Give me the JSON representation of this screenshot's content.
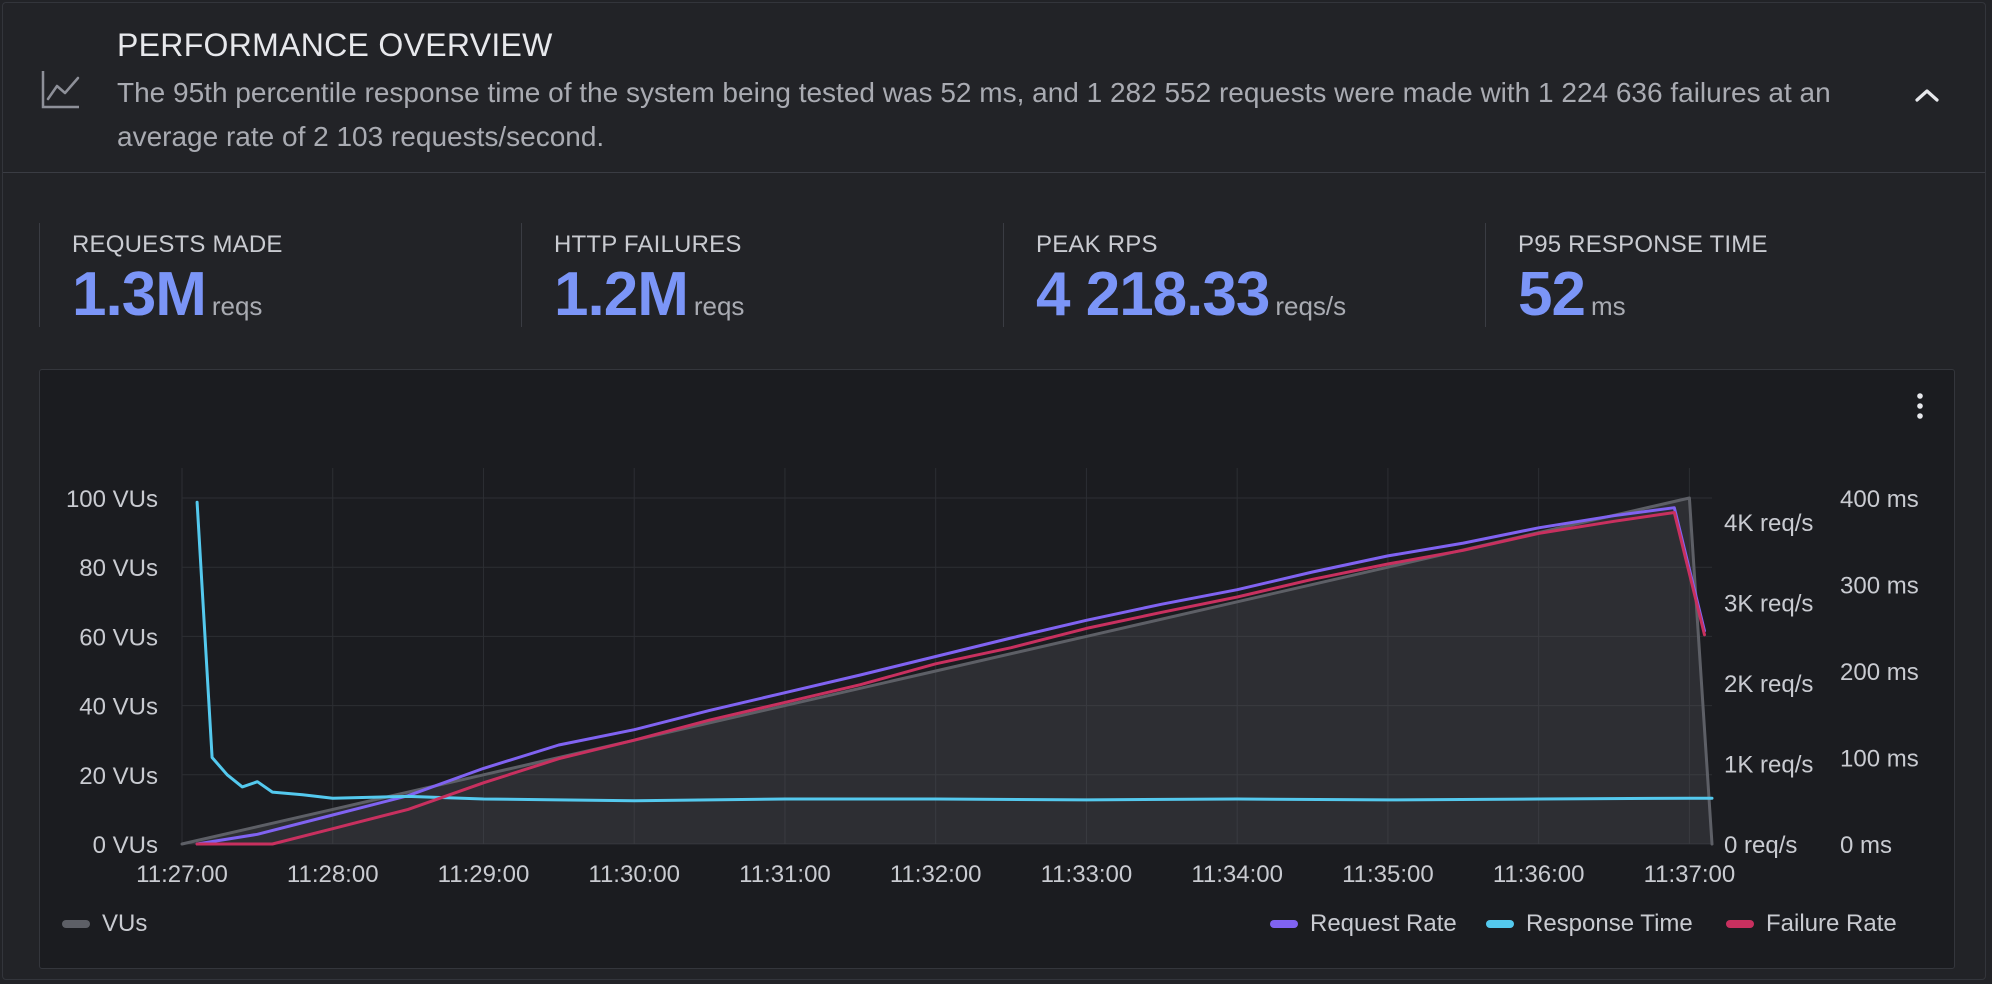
{
  "header": {
    "title": "PERFORMANCE OVERVIEW",
    "summary": "The 95th percentile response time of the system being tested was 52 ms, and 1 282 552 requests were made with 1 224 636 failures at an average rate of 2 103 requests/second.",
    "icon": "line-chart-icon",
    "collapse_icon": "chevron-up-icon"
  },
  "stats": [
    {
      "label": "REQUESTS MADE",
      "value": "1.3M",
      "unit": "reqs"
    },
    {
      "label": "HTTP FAILURES",
      "value": "1.2M",
      "unit": "reqs"
    },
    {
      "label": "PEAK RPS",
      "value": "4 218.33",
      "unit": "reqs/s"
    },
    {
      "label": "P95 RESPONSE TIME",
      "value": "52",
      "unit": "ms"
    }
  ],
  "chart": {
    "menu_icon": "more-vertical-icon"
  },
  "colors": {
    "accent": "#7b95f7",
    "vus": "#5d5f66",
    "request_rate": "#8063f2",
    "response_time": "#54c9ee",
    "failure_rate": "#c8305f"
  },
  "chart_data": {
    "type": "line",
    "x_ticks": [
      "11:27:00",
      "11:28:00",
      "11:29:00",
      "11:30:00",
      "11:31:00",
      "11:32:00",
      "11:33:00",
      "11:34:00",
      "11:35:00",
      "11:36:00",
      "11:37:00"
    ],
    "axes": {
      "vus": {
        "ticks": [
          "0 VUs",
          "20 VUs",
          "40 VUs",
          "60 VUs",
          "80 VUs",
          "100 VUs"
        ],
        "range": [
          0,
          100
        ]
      },
      "rps": {
        "ticks": [
          "0 req/s",
          "1K req/s",
          "2K req/s",
          "3K req/s",
          "4K req/s"
        ],
        "range": [
          0,
          4300
        ]
      },
      "ms": {
        "ticks": [
          "0 ms",
          "100 ms",
          "200 ms",
          "300 ms",
          "400 ms"
        ],
        "range": [
          0,
          400
        ]
      }
    },
    "grid": true,
    "legend_placement": "bottom",
    "series": [
      {
        "name": "VUs",
        "axis": "vus",
        "color": "#5d5f66",
        "fill": true,
        "points": [
          [
            0,
            0
          ],
          [
            0.1,
            1
          ],
          [
            0.5,
            5
          ],
          [
            1,
            10
          ],
          [
            2,
            20
          ],
          [
            3,
            30
          ],
          [
            4,
            40
          ],
          [
            5,
            50
          ],
          [
            6,
            60
          ],
          [
            7,
            70
          ],
          [
            8,
            80
          ],
          [
            9,
            90
          ],
          [
            10,
            100
          ],
          [
            10.15,
            0
          ]
        ]
      },
      {
        "name": "Request Rate",
        "axis": "rps",
        "color": "#8063f2",
        "points": [
          [
            0.1,
            0
          ],
          [
            0.5,
            120
          ],
          [
            1,
            360
          ],
          [
            1.5,
            600
          ],
          [
            2,
            940
          ],
          [
            2.5,
            1230
          ],
          [
            3,
            1420
          ],
          [
            3.5,
            1660
          ],
          [
            4,
            1880
          ],
          [
            4.5,
            2100
          ],
          [
            5,
            2330
          ],
          [
            5.5,
            2560
          ],
          [
            6,
            2780
          ],
          [
            6.5,
            2980
          ],
          [
            7,
            3160
          ],
          [
            7.5,
            3380
          ],
          [
            8,
            3580
          ],
          [
            8.5,
            3740
          ],
          [
            9,
            3930
          ],
          [
            9.5,
            4080
          ],
          [
            9.9,
            4180
          ],
          [
            10.1,
            2650
          ]
        ]
      },
      {
        "name": "Response Time",
        "axis": "ms",
        "color": "#54c9ee",
        "points": [
          [
            0.1,
            395
          ],
          [
            0.2,
            100
          ],
          [
            0.3,
            80
          ],
          [
            0.4,
            66
          ],
          [
            0.5,
            72
          ],
          [
            0.6,
            60
          ],
          [
            0.8,
            57
          ],
          [
            1,
            53
          ],
          [
            1.5,
            55
          ],
          [
            2,
            52
          ],
          [
            2.5,
            51
          ],
          [
            3,
            50
          ],
          [
            3.5,
            51
          ],
          [
            4,
            52
          ],
          [
            5,
            52
          ],
          [
            6,
            51
          ],
          [
            7,
            52
          ],
          [
            8,
            51
          ],
          [
            9,
            52
          ],
          [
            10,
            53
          ],
          [
            10.15,
            53
          ]
        ]
      },
      {
        "name": "Failure Rate",
        "axis": "rps",
        "color": "#c8305f",
        "points": [
          [
            0.1,
            0
          ],
          [
            0.6,
            0
          ],
          [
            1,
            190
          ],
          [
            1.5,
            430
          ],
          [
            2,
            760
          ],
          [
            2.5,
            1060
          ],
          [
            3,
            1290
          ],
          [
            3.5,
            1540
          ],
          [
            4,
            1760
          ],
          [
            4.5,
            1980
          ],
          [
            5,
            2240
          ],
          [
            5.5,
            2440
          ],
          [
            6,
            2680
          ],
          [
            6.5,
            2880
          ],
          [
            7,
            3070
          ],
          [
            7.5,
            3290
          ],
          [
            8,
            3480
          ],
          [
            8.5,
            3650
          ],
          [
            9,
            3860
          ],
          [
            9.5,
            4010
          ],
          [
            9.9,
            4120
          ],
          [
            10.1,
            2600
          ]
        ]
      }
    ]
  }
}
